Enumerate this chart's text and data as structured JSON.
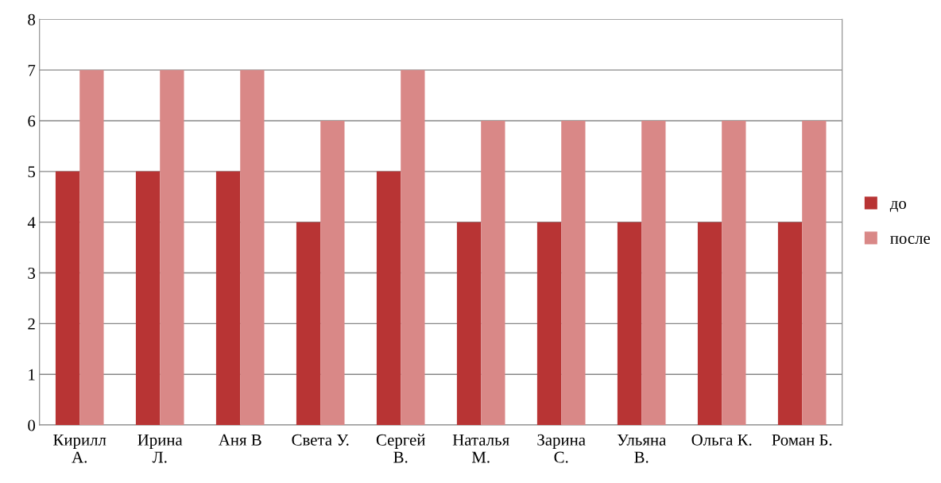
{
  "chart_data": {
    "type": "bar",
    "categories": [
      "Кирилл\nА.",
      "Ирина\nЛ.",
      "Аня В",
      "Света У.",
      "Сергей\nВ.",
      "Наталья\nМ.",
      "Зарина\nС.",
      "Ульяна\nВ.",
      "Ольга К.",
      "Роман Б."
    ],
    "series": [
      {
        "name": "до",
        "color": "#b83434",
        "values": [
          5,
          5,
          5,
          4,
          5,
          4,
          4,
          4,
          4,
          4
        ]
      },
      {
        "name": "после",
        "color": "#d98887",
        "values": [
          7,
          7,
          7,
          6,
          7,
          6,
          6,
          6,
          6,
          6
        ]
      }
    ],
    "ylim": [
      0,
      8
    ],
    "yticks": [
      0,
      1,
      2,
      3,
      4,
      5,
      6,
      7,
      8
    ],
    "grid": "y",
    "legend": "right"
  }
}
